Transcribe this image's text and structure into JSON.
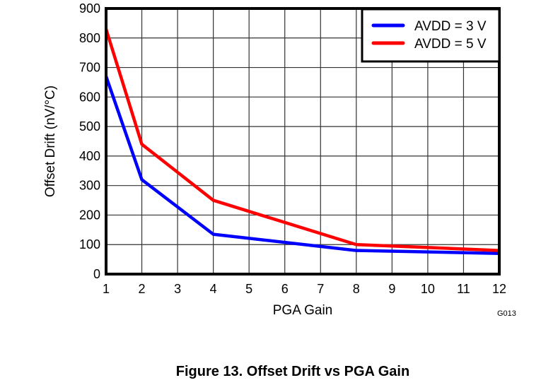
{
  "chart_data": {
    "type": "line",
    "title": "",
    "caption": "Figure 13. Offset Drift vs PGA Gain",
    "xlabel": "PGA Gain",
    "ylabel": "Offset Drift (nV/°C)",
    "xlim": [
      1,
      12
    ],
    "ylim": [
      0,
      900
    ],
    "xticks": [
      1,
      2,
      3,
      4,
      5,
      6,
      7,
      8,
      9,
      10,
      11,
      12
    ],
    "yticks": [
      0,
      100,
      200,
      300,
      400,
      500,
      600,
      700,
      800,
      900
    ],
    "grid": true,
    "legend_position": "top-right",
    "figure_code": "G013",
    "series": [
      {
        "name": "AVDD = 3 V",
        "color": "#0000ff",
        "x": [
          1,
          2,
          4,
          8,
          12
        ],
        "y": [
          670,
          320,
          135,
          80,
          70
        ]
      },
      {
        "name": "AVDD = 5 V",
        "color": "#ff0000",
        "x": [
          1,
          2,
          4,
          8,
          12
        ],
        "y": [
          830,
          440,
          250,
          100,
          80
        ]
      }
    ]
  }
}
